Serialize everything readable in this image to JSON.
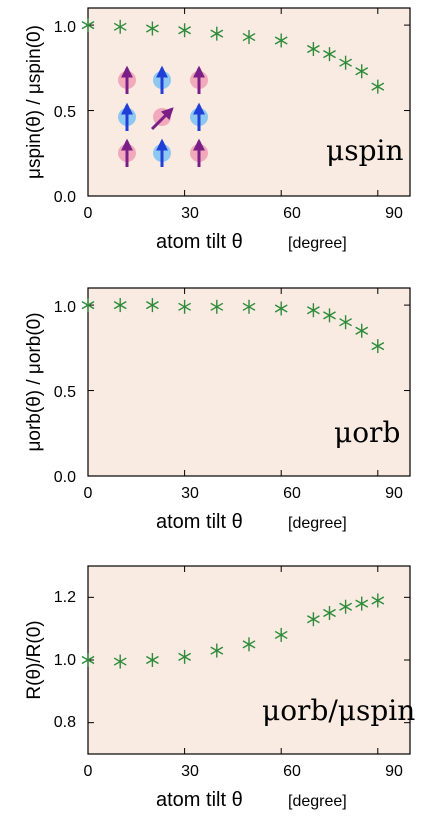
{
  "colors": {
    "panel_bg": "#f9ebe2",
    "marker": "#2e8b3a",
    "arrow_purple": "#7b1f86",
    "arrow_blue": "#1f3fd6",
    "atom_pink": "#f2a9bc",
    "atom_blue": "#8ec8f2"
  },
  "chart_data": [
    {
      "type": "scatter",
      "marker": "asterisk",
      "x": [
        0,
        10,
        20,
        30,
        40,
        50,
        60,
        70,
        75,
        80,
        85,
        90
      ],
      "values": [
        1.0,
        0.99,
        0.98,
        0.97,
        0.95,
        0.93,
        0.91,
        0.86,
        0.83,
        0.78,
        0.73,
        0.64
      ],
      "xlim": [
        0,
        100
      ],
      "ylim": [
        0.0,
        1.1
      ],
      "xticks": [
        "0",
        "30",
        "60",
        "90"
      ],
      "yticks": [
        "0.0",
        "0.5",
        "1.0"
      ],
      "xlabel": "atom tilt θ",
      "xlabel_unit": "[degree]",
      "ylabel": "μspin(θ) / μspin(0)",
      "annotation": "μspin",
      "inset": "spin lattice arrows"
    },
    {
      "type": "scatter",
      "marker": "asterisk",
      "x": [
        0,
        10,
        20,
        30,
        40,
        50,
        60,
        70,
        75,
        80,
        85,
        90
      ],
      "values": [
        1.0,
        1.0,
        1.0,
        0.99,
        0.99,
        0.99,
        0.98,
        0.97,
        0.94,
        0.9,
        0.85,
        0.76
      ],
      "xlim": [
        0,
        100
      ],
      "ylim": [
        0.0,
        1.1
      ],
      "xticks": [
        "0",
        "30",
        "60",
        "90"
      ],
      "yticks": [
        "0.0",
        "0.5",
        "1.0"
      ],
      "xlabel": "atom tilt θ",
      "xlabel_unit": "[degree]",
      "ylabel": "μorb(θ) / μorb(0)",
      "annotation": "μorb"
    },
    {
      "type": "scatter",
      "marker": "asterisk",
      "x": [
        0,
        10,
        20,
        30,
        40,
        50,
        60,
        70,
        75,
        80,
        85,
        90
      ],
      "values": [
        1.0,
        0.995,
        1.0,
        1.01,
        1.03,
        1.05,
        1.08,
        1.13,
        1.15,
        1.17,
        1.18,
        1.19
      ],
      "xlim": [
        0,
        100
      ],
      "ylim": [
        0.7,
        1.3
      ],
      "xticks": [
        "0",
        "30",
        "60",
        "90"
      ],
      "yticks": [
        "0.8",
        "1.0",
        "1.2"
      ],
      "xlabel": "atom tilt θ",
      "xlabel_unit": "[degree]",
      "ylabel": "R(θ)/R(0)",
      "annotation": "μorb/μspin"
    }
  ]
}
